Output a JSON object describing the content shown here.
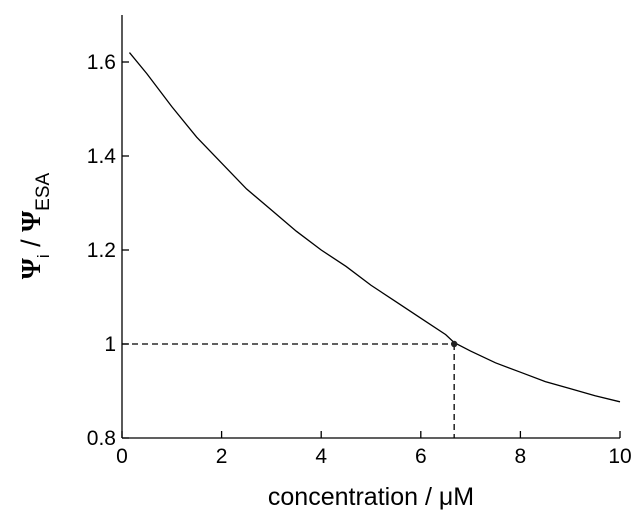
{
  "chart_data": {
    "type": "line",
    "xlabel": "concentration / μM",
    "ylabel": {
      "symbol": "Ψ",
      "numerator_sub": "i",
      "separator": " / ",
      "denominator_sub": "ESA"
    },
    "xlim": [
      0,
      10
    ],
    "ylim": [
      0.8,
      1.7
    ],
    "x_ticks": [
      0,
      2,
      4,
      6,
      8,
      10
    ],
    "x_tick_labels": [
      "0",
      "2",
      "4",
      "6",
      "8",
      "10"
    ],
    "y_ticks": [
      0.8,
      1.0,
      1.2,
      1.4,
      1.6
    ],
    "y_tick_labels": [
      "0.8",
      "1",
      "1.2",
      "1.4",
      "1.6"
    ],
    "grid": false,
    "series": [
      {
        "x": [
          0.15,
          0.5,
          1,
          1.5,
          2,
          2.5,
          3,
          3.5,
          4,
          4.5,
          5,
          5.5,
          6,
          6.5,
          6.67,
          7,
          7.5,
          8,
          8.5,
          9,
          9.5,
          10
        ],
        "y": [
          1.62,
          1.575,
          1.505,
          1.44,
          1.385,
          1.33,
          1.285,
          1.24,
          1.2,
          1.165,
          1.125,
          1.09,
          1.055,
          1.02,
          1.003,
          0.985,
          0.96,
          0.94,
          0.92,
          0.905,
          0.89,
          0.877
        ]
      }
    ],
    "marker_point": {
      "x": 6.67,
      "y": 1.0
    },
    "reference_lines": "dashed"
  }
}
